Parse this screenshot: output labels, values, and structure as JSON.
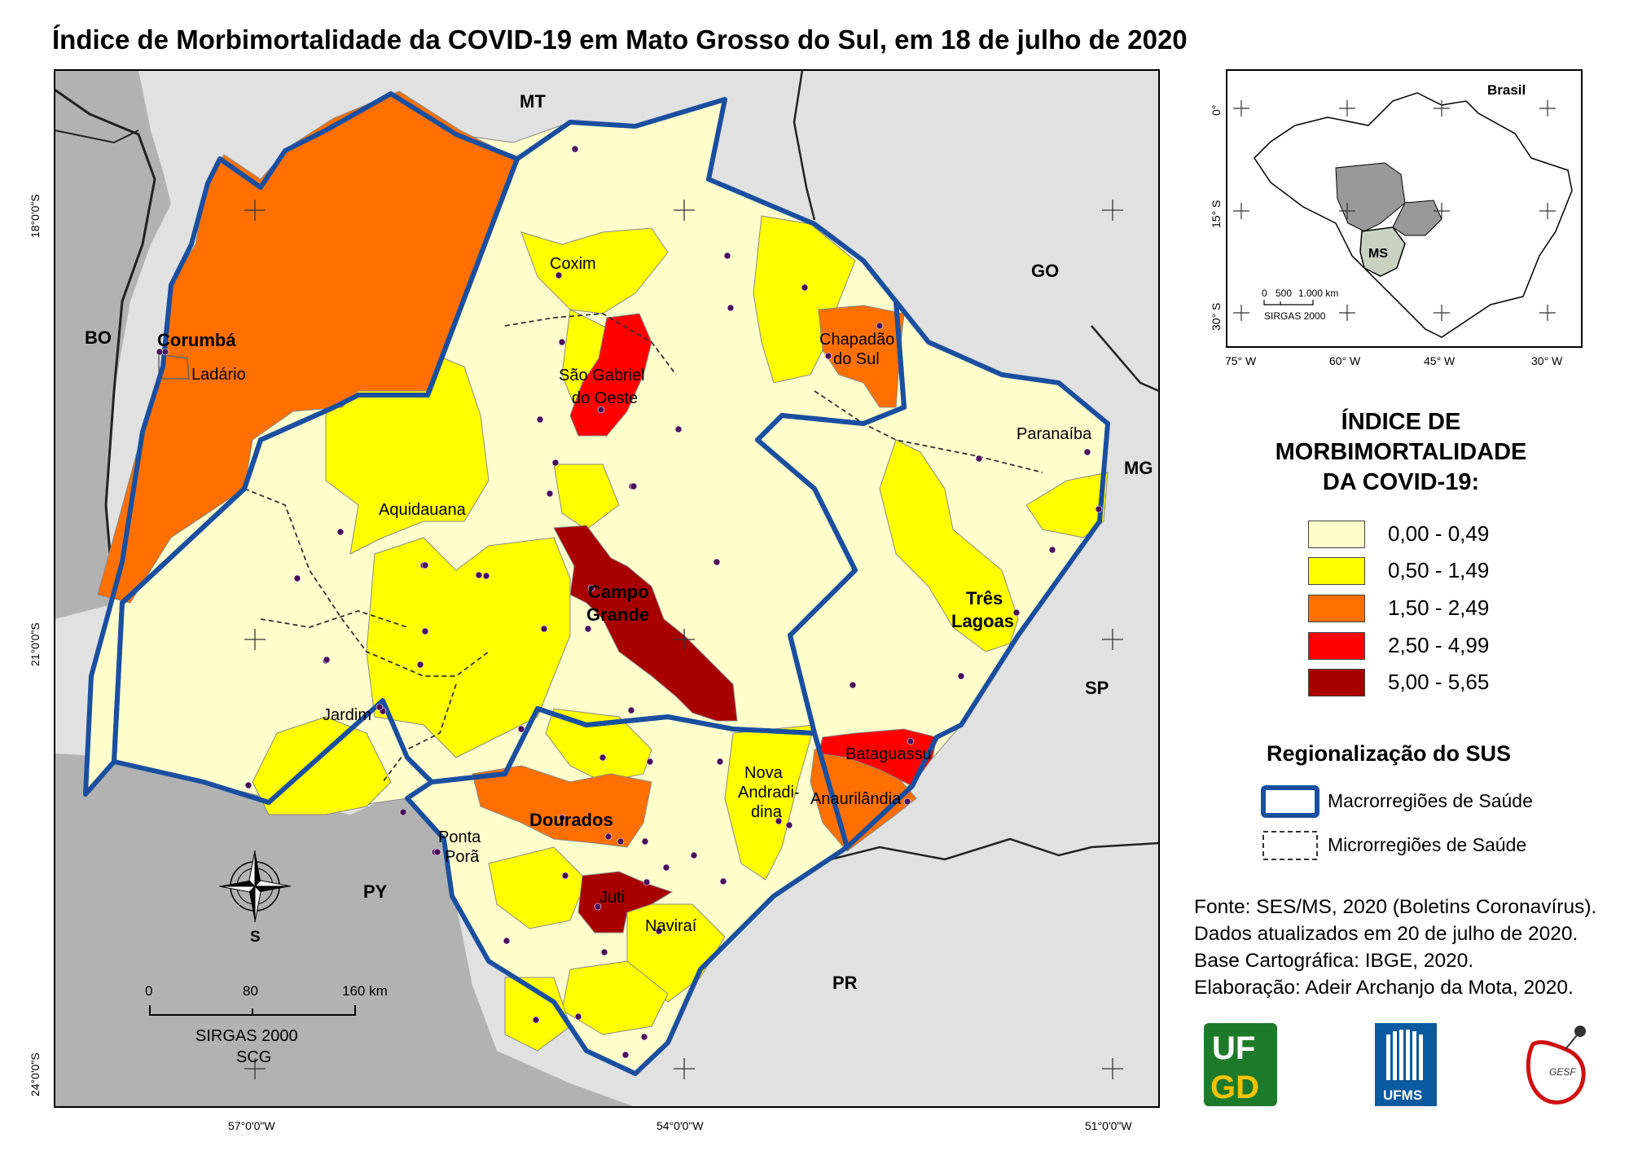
{
  "title": "Índice de Morbimortalidade da COVID-19 em Mato Grosso do Sul, em 18 de julho de 2020",
  "colors": {
    "class0": "#ffffcc",
    "class1": "#ffff00",
    "class2": "#ff7000",
    "class3": "#ff0000",
    "class4": "#a80000",
    "macro_border": "#1a4fa0",
    "neighbor_land": "#e1e1e1",
    "neighbor_country": "#b2b2b2",
    "city_dot": "#4b0f5a"
  },
  "states": {
    "mt": "MT",
    "go": "GO",
    "mg": "MG",
    "sp": "SP",
    "pr": "PR",
    "bo": "BO",
    "py": "PY"
  },
  "cities": {
    "corumba": "Corumbá",
    "ladario": "Ladário",
    "coxim": "Coxim",
    "sao_gabriel_1": "São Gabriel",
    "sao_gabriel_2": "do Oeste",
    "chapadao_1": "Chapadão",
    "chapadao_2": "do Sul",
    "paranaiba": "Paranaíba",
    "aquidauana": "Aquidauana",
    "campo_grande_1": "Campo",
    "campo_grande_2": "Grande",
    "tres_lagoas_1": "Três",
    "tres_lagoas_2": "Lagoas",
    "jardim": "Jardim",
    "bataguassu": "Bataguassu",
    "nova_andradina_1": "Nova",
    "nova_andradina_2": "Andradi-",
    "nova_andradina_3": "dina",
    "anaurilandia": "Anaurilândia",
    "dourados": "Dourados",
    "ponta_pora_1": "Ponta",
    "ponta_pora_2": "Porã",
    "juti": "Juti",
    "navirai": "Naviraí"
  },
  "coordinates": {
    "lat_18": "18°0'0\"S",
    "lat_21": "21°0'0\"S",
    "lat_24": "24°0'0\"S",
    "lon_57": "57°0'0\"W",
    "lon_54": "54°0'0\"W",
    "lon_51": "51°0'0\"W"
  },
  "north_arrow": {
    "label": "S"
  },
  "scale_bar": {
    "ticks": [
      "0",
      "80",
      "160 km"
    ],
    "datum": "SIRGAS 2000",
    "projection": "SCG"
  },
  "inset": {
    "country": "Brasil",
    "state": "MS",
    "lat_labels": [
      "0°",
      "15° S",
      "30° S"
    ],
    "lon_labels": [
      "75° W",
      "60° W",
      "45° W",
      "30° W"
    ],
    "scale_ticks": [
      "0",
      "500",
      "1.000 km"
    ],
    "datum": "SIRGAS 2000"
  },
  "legend": {
    "title_lines": [
      "ÍNDICE DE",
      "MORBIMORTALIDADE",
      "DA COVID-19:"
    ],
    "classes": [
      {
        "label": "0,00 - 0,49",
        "color": "#ffffcc"
      },
      {
        "label": "0,50 - 1,49",
        "color": "#ffff00"
      },
      {
        "label": "1,50 - 2,49",
        "color": "#ff7000"
      },
      {
        "label": "2,50 - 4,99",
        "color": "#ff0000"
      },
      {
        "label": "5,00 - 5,65",
        "color": "#a80000"
      }
    ]
  },
  "regionalization": {
    "title": "Regionalização do SUS",
    "macro_label": "Macrorregiões de Saúde",
    "micro_label": "Microrregiões de Saúde"
  },
  "credits": [
    "Fonte: SES/MS, 2020 (Boletins Coronavírus).",
    "Dados atualizados em 20 de julho de 2020.",
    "Base Cartográfica: IBGE, 2020.",
    "Elaboração: Adeir Archanjo da Mota, 2020."
  ],
  "logos": {
    "ufgd_line1": "UF",
    "ufgd_line2": "GD",
    "ufms": "UFMS",
    "gesf": "GESF"
  }
}
